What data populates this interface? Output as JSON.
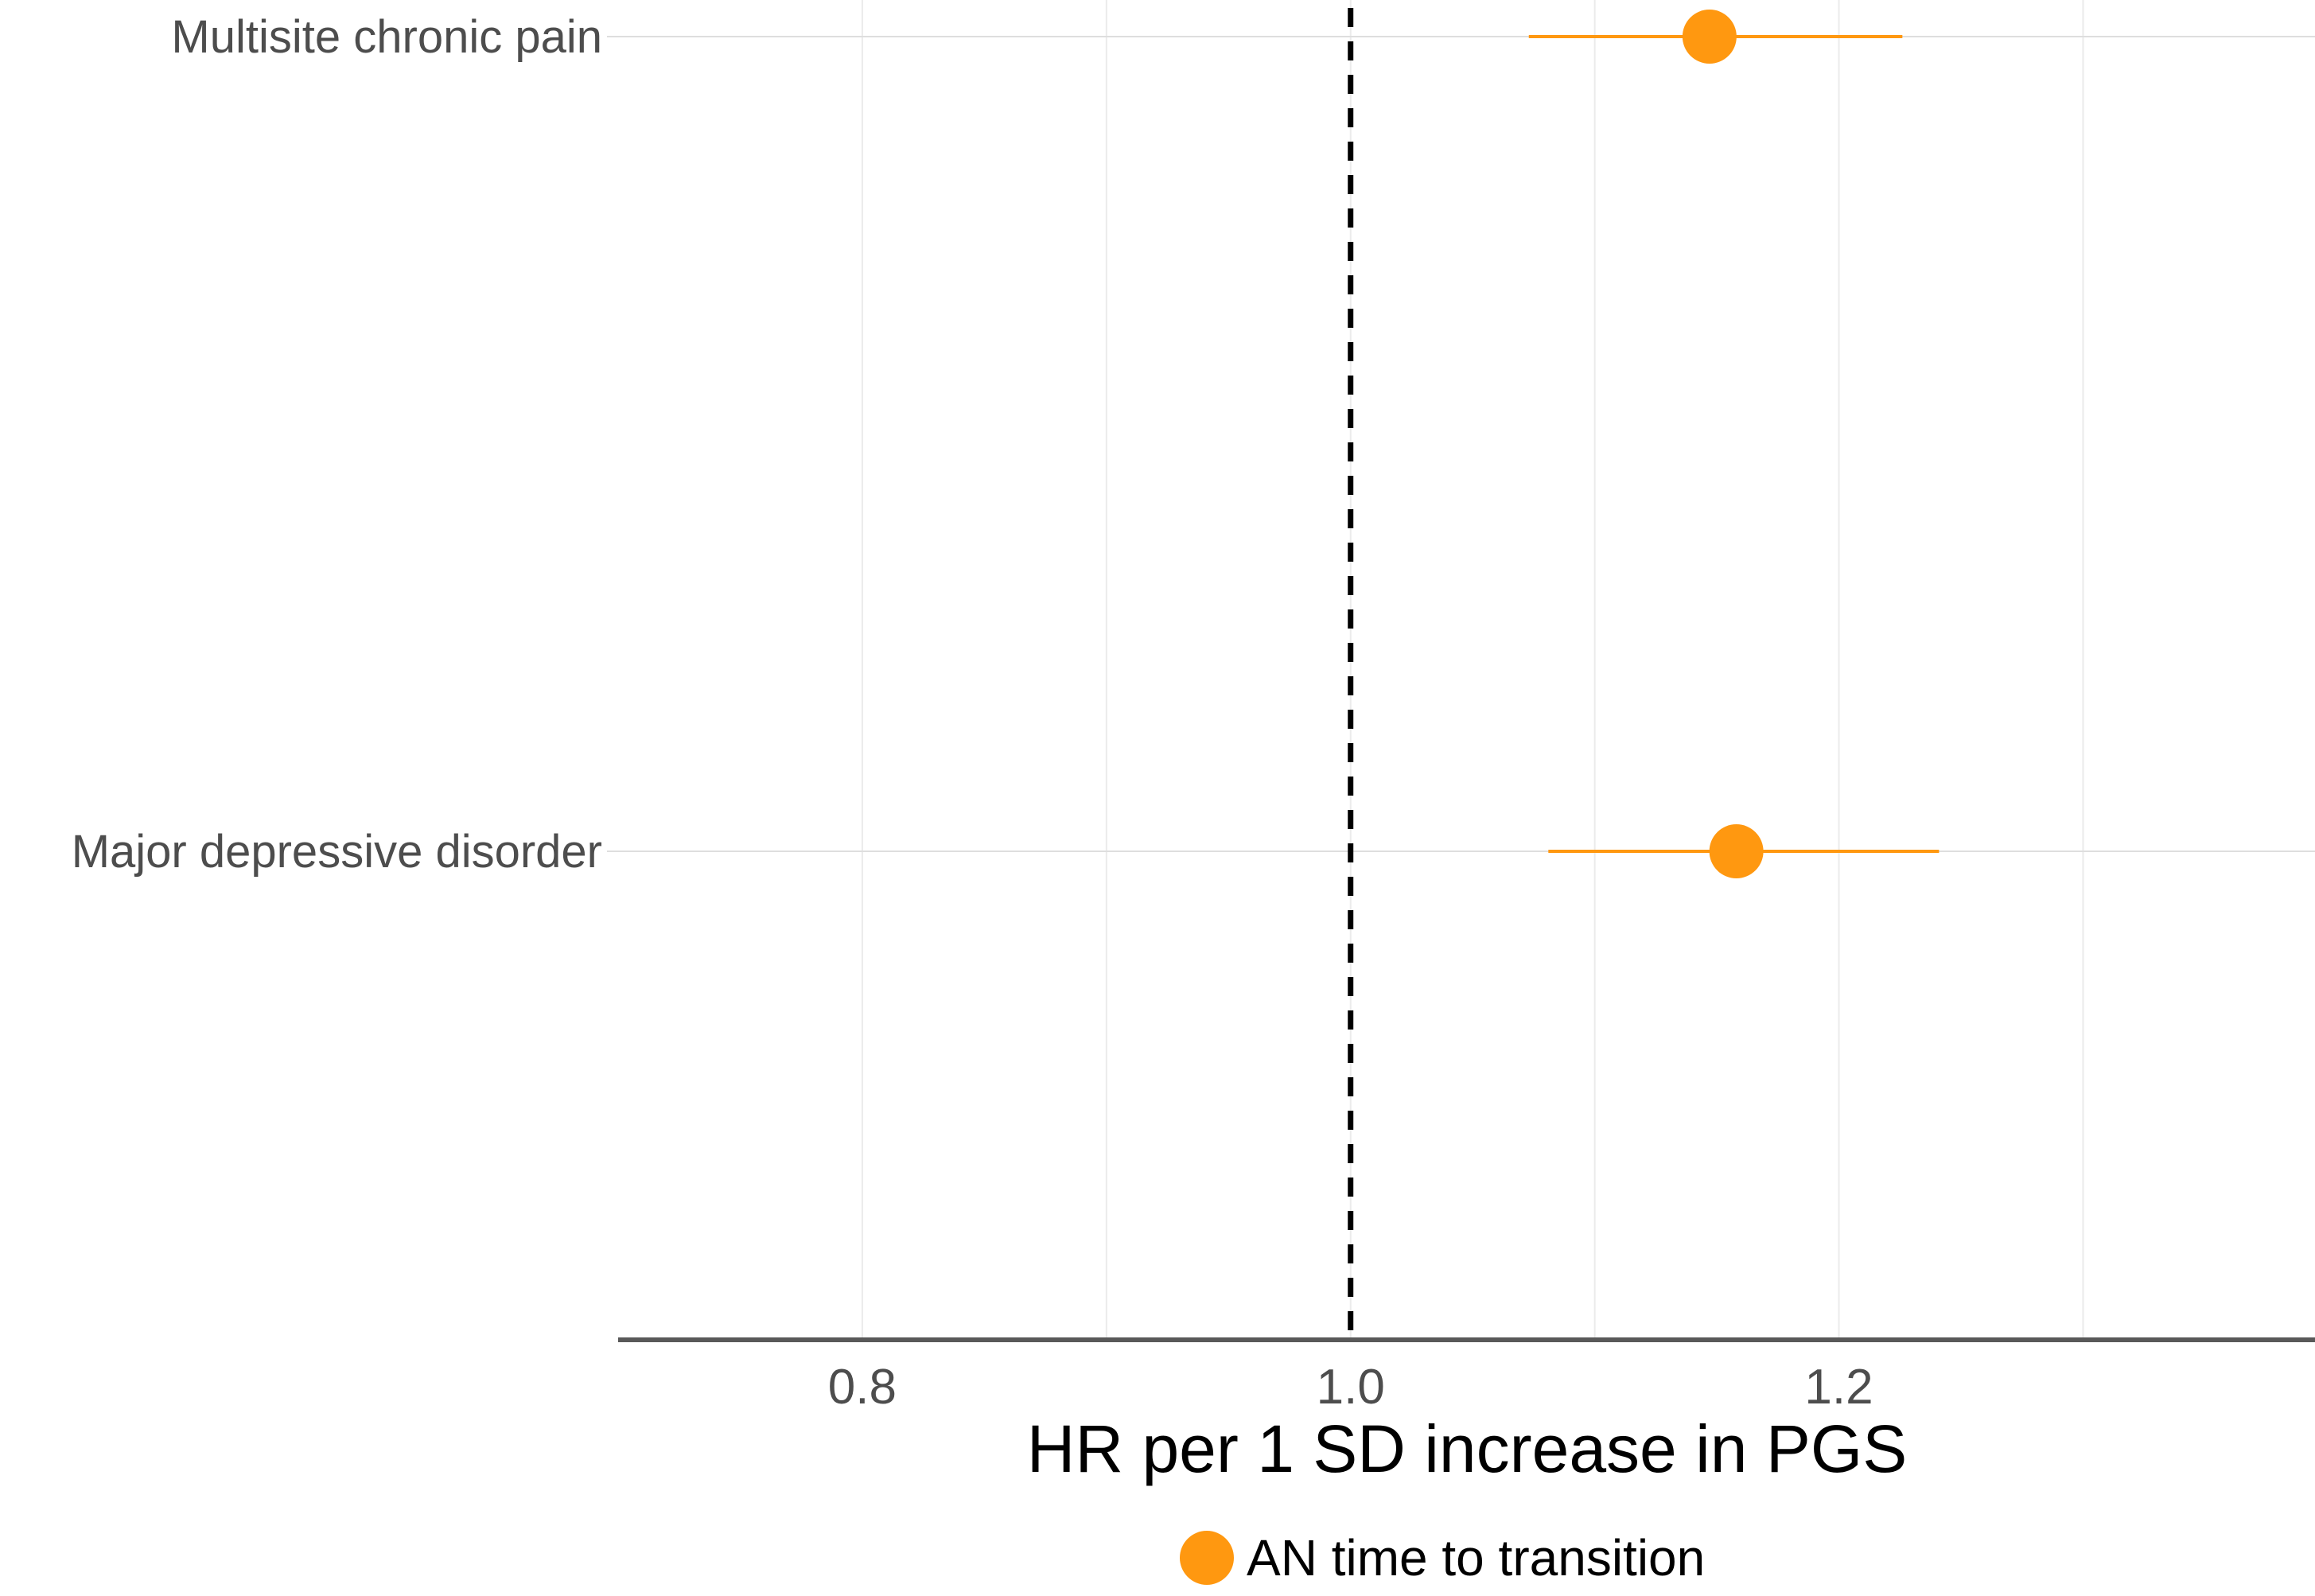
{
  "chart_data": {
    "type": "forest",
    "categories": [
      "Multisite chronic pain",
      "Major depressive disorder"
    ],
    "series": [
      {
        "name": "AN time to transition",
        "color": "#FF9810",
        "points": [
          {
            "category": "Multisite chronic pain",
            "estimate": 1.147,
            "lower": 1.073,
            "upper": 1.226
          },
          {
            "category": "Major depressive disorder",
            "estimate": 1.158,
            "lower": 1.081,
            "upper": 1.241
          }
        ]
      }
    ],
    "xlabel": "HR per 1 SD increase in PGS",
    "ylabel": "",
    "x_ticks": [
      0.8,
      1.0,
      1.2
    ],
    "x_tick_labels": [
      "0.8",
      "1.0",
      "1.2"
    ],
    "xlim": [
      0.7,
      1.395
    ],
    "reference_line": 1.0,
    "legend_position": "bottom",
    "grid": true
  }
}
